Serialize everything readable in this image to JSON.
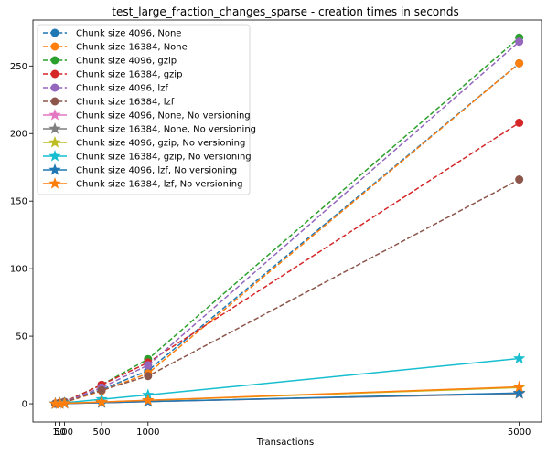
{
  "chart_data": {
    "type": "line",
    "title": "test_large_fraction_changes_sparse - creation times in seconds",
    "xlabel": "Transactions",
    "ylabel": "",
    "x": [
      1,
      50,
      100,
      500,
      1000,
      5000
    ],
    "xticks": [
      1,
      50,
      100,
      500,
      1000,
      5000
    ],
    "xtick_labels": [
      "1",
      "50",
      "100",
      "500",
      "1000",
      "5000"
    ],
    "yticks": [
      0,
      50,
      100,
      150,
      200,
      250
    ],
    "xlim": [
      -240,
      5240
    ],
    "ylim": [
      -13.5,
      284
    ],
    "grid": false,
    "legend_position": "top-left",
    "series": [
      {
        "name": "Chunk size 4096, None",
        "color": "#1f77b4",
        "linestyle": "dashed",
        "marker": "circle",
        "values": [
          0.1,
          0.6,
          1.2,
          10.5,
          24.5,
          252
        ]
      },
      {
        "name": "Chunk size 16384, None",
        "color": "#ff7f0e",
        "linestyle": "dashed",
        "marker": "circle",
        "values": [
          0.1,
          0.5,
          1.0,
          9.5,
          22.5,
          252
        ]
      },
      {
        "name": "Chunk size 4096, gzip",
        "color": "#2ca02c",
        "linestyle": "dashed",
        "marker": "circle",
        "values": [
          0.1,
          0.7,
          1.5,
          14.0,
          33.0,
          271
        ]
      },
      {
        "name": "Chunk size 16384, gzip",
        "color": "#d62728",
        "linestyle": "dashed",
        "marker": "circle",
        "values": [
          0.1,
          0.7,
          1.4,
          14.0,
          30.5,
          208
        ]
      },
      {
        "name": "Chunk size 4096, lzf",
        "color": "#9467bd",
        "linestyle": "dashed",
        "marker": "circle",
        "values": [
          0.1,
          0.6,
          1.3,
          12.0,
          28.5,
          268
        ]
      },
      {
        "name": "Chunk size 16384, lzf",
        "color": "#8c564b",
        "linestyle": "dashed",
        "marker": "circle",
        "values": [
          0.1,
          0.5,
          1.1,
          10.0,
          20.5,
          166
        ]
      },
      {
        "name": "Chunk size 4096, None, No versioning",
        "color": "#e377c2",
        "linestyle": "solid",
        "marker": "star",
        "values": [
          0.0,
          0.1,
          0.2,
          0.8,
          1.6,
          7.5
        ]
      },
      {
        "name": "Chunk size 16384, None, No versioning",
        "color": "#7f7f7f",
        "linestyle": "solid",
        "marker": "star",
        "values": [
          0.0,
          0.1,
          0.2,
          0.8,
          1.6,
          7.5
        ]
      },
      {
        "name": "Chunk size 4096, gzip, No versioning",
        "color": "#bcbd22",
        "linestyle": "solid",
        "marker": "star",
        "values": [
          0.0,
          0.1,
          0.3,
          1.2,
          2.5,
          12.0
        ]
      },
      {
        "name": "Chunk size 16384, gzip, No versioning",
        "color": "#17becf",
        "linestyle": "solid",
        "marker": "star",
        "values": [
          0.0,
          0.4,
          0.7,
          3.3,
          6.5,
          33.5
        ]
      },
      {
        "name": "Chunk size 4096, lzf, No versioning",
        "color": "#1f77b4",
        "linestyle": "solid",
        "marker": "star",
        "values": [
          0.0,
          0.1,
          0.2,
          0.8,
          1.6,
          8.0
        ]
      },
      {
        "name": "Chunk size 16384, lzf, No versioning",
        "color": "#ff7f0e",
        "linestyle": "solid",
        "marker": "star",
        "values": [
          0.0,
          0.1,
          0.3,
          1.3,
          2.6,
          12.5
        ]
      }
    ]
  }
}
